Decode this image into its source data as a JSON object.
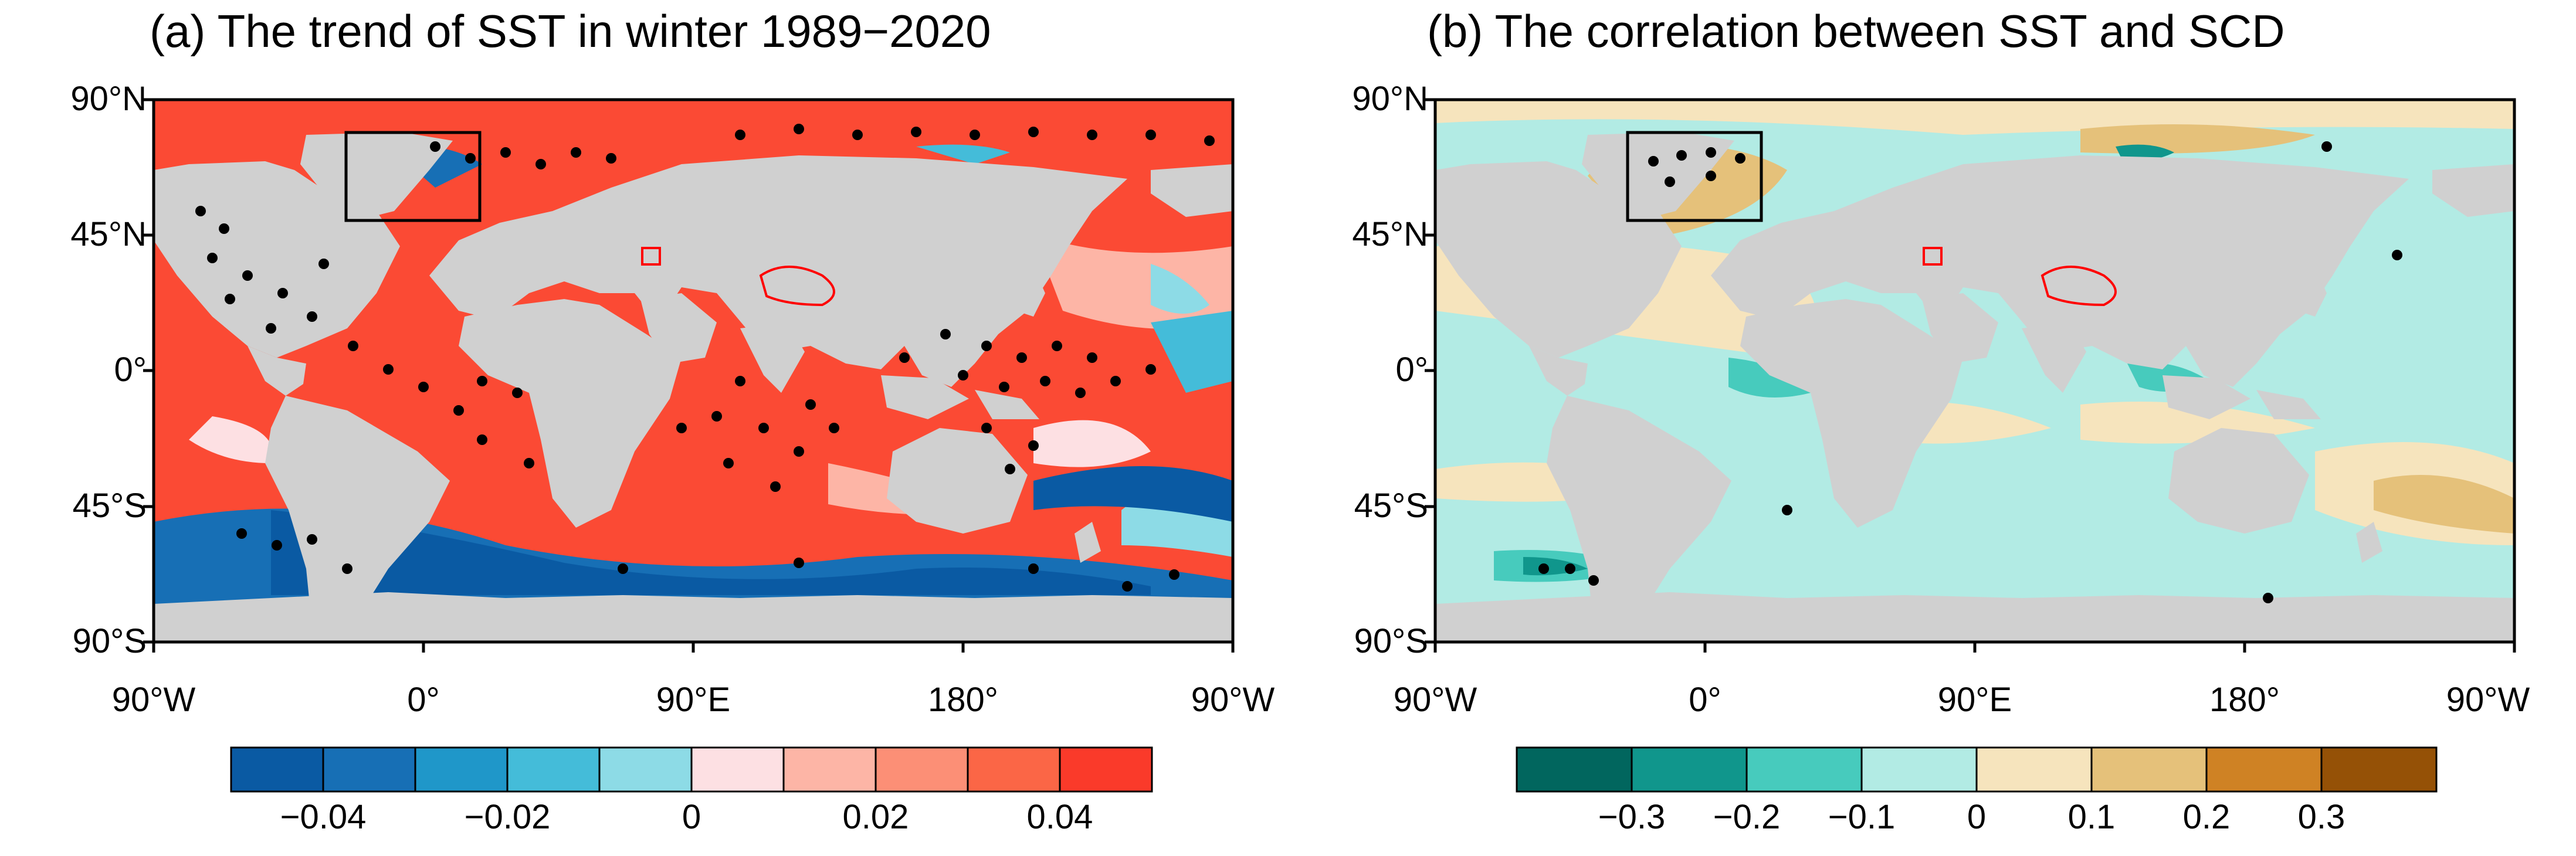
{
  "panel_a": {
    "title": "(a) The trend of SST in winter 1989−2020",
    "lat_labels": [
      "90°N",
      "45°N",
      "0°",
      "45°S",
      "90°S"
    ],
    "lon_labels": [
      "90°W",
      "0°",
      "90°E",
      "180°",
      "90°W"
    ],
    "colorbar": {
      "colors": [
        "#0a5aa3",
        "#176fb5",
        "#1f97c9",
        "#44bcd9",
        "#8ddbe6",
        "#fde0e3",
        "#fdb5a6",
        "#fc8f76",
        "#fb6646",
        "#fa3a2a"
      ],
      "ticks": [
        "−0.04",
        "−0.02",
        "0",
        "0.02",
        "0.04"
      ]
    }
  },
  "panel_b": {
    "title": "(b) The correlation between SST and SCD",
    "lat_labels": [
      "90°N",
      "45°N",
      "0°",
      "45°S",
      "90°S"
    ],
    "lon_labels": [
      "90°W",
      "0°",
      "90°E",
      "180°",
      "90°W"
    ],
    "colorbar": {
      "colors": [
        "#01665e",
        "#10968c",
        "#47cbbd",
        "#b2ebe4",
        "#f6e4bd",
        "#e5c17a",
        "#cf8224",
        "#955106"
      ],
      "ticks": [
        "−0.3",
        "−0.2",
        "−0.1",
        "0",
        "0.1",
        "0.2",
        "0.3"
      ]
    }
  },
  "colors": {
    "land": "#d0d0d0",
    "frame": "#000000",
    "plateau": "#ff0000",
    "stipple": "#000000"
  }
}
